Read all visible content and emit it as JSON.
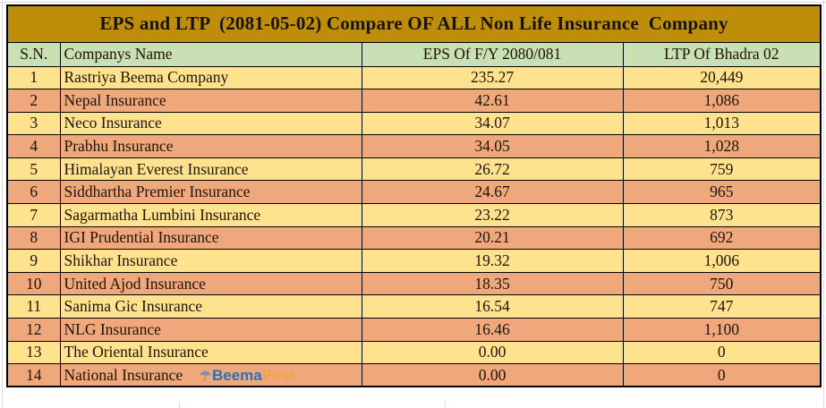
{
  "title": "EPS and LTP  (2081-05-02) Compare OF ALL Non Life Insurance  Company",
  "table": {
    "columns": [
      "S.N.",
      "Companys Name",
      "EPS Of F/Y 2080/081",
      "LTP Of Bhadra 02"
    ],
    "rows": [
      {
        "sn": "1",
        "name": "Rastriya Beema Company",
        "eps": "235.27",
        "ltp": "20,449"
      },
      {
        "sn": "2",
        "name": "Nepal Insurance",
        "eps": "42.61",
        "ltp": "1,086"
      },
      {
        "sn": "3",
        "name": "Neco Insurance",
        "eps": "34.07",
        "ltp": "1,013"
      },
      {
        "sn": "4",
        "name": "Prabhu Insurance",
        "eps": "34.05",
        "ltp": "1,028"
      },
      {
        "sn": "5",
        "name": "Himalayan Everest Insurance",
        "eps": "26.72",
        "ltp": "759"
      },
      {
        "sn": "6",
        "name": "Siddhartha Premier Insurance",
        "eps": "24.67",
        "ltp": "965"
      },
      {
        "sn": "7",
        "name": "Sagarmatha Lumbini Insurance",
        "eps": "23.22",
        "ltp": "873"
      },
      {
        "sn": "8",
        "name": "IGI Prudential Insurance",
        "eps": "20.21",
        "ltp": "692"
      },
      {
        "sn": "9",
        "name": "Shikhar Insurance",
        "eps": "19.32",
        "ltp": "1,006"
      },
      {
        "sn": "10",
        "name": "United Ajod Insurance",
        "eps": "18.35",
        "ltp": "750"
      },
      {
        "sn": "11",
        "name": "Sanima Gic Insurance",
        "eps": "16.54",
        "ltp": "747"
      },
      {
        "sn": "12",
        "name": "NLG Insurance",
        "eps": "16.46",
        "ltp": "1,100"
      },
      {
        "sn": "13",
        "name": "The Oriental Insurance",
        "eps": "0.00",
        "ltp": "0"
      },
      {
        "sn": "14",
        "name": "National Insurance",
        "eps": "0.00",
        "ltp": "0",
        "watermark": true
      }
    ]
  },
  "watermark": {
    "icon": "umbrella-icon",
    "icon_glyph": "☂",
    "beema": "Beema",
    "post": "Post"
  },
  "colors": {
    "title_bg": "#BE8E0B",
    "title_text": "#1a1202",
    "header_bg": "#C9DFB4",
    "row_yellow": "#FFE28E",
    "row_salmon": "#EFA87C",
    "cell_text": "#1f1408",
    "border": "#000000",
    "beema_blue": "#2d6fb3",
    "post_orange": "#f7a23c",
    "umbrella_gray": "#7e93ab",
    "gridline": "#dcdcdc"
  },
  "chart_data": {
    "type": "table",
    "title": "EPS and LTP (2081-05-02) Compare OF ALL Non Life Insurance Company",
    "columns": [
      "S.N.",
      "Companys Name",
      "EPS Of F/Y 2080/081",
      "LTP Of Bhadra 02"
    ],
    "rows": [
      [
        1,
        "Rastriya Beema Company",
        235.27,
        20449
      ],
      [
        2,
        "Nepal Insurance",
        42.61,
        1086
      ],
      [
        3,
        "Neco Insurance",
        34.07,
        1013
      ],
      [
        4,
        "Prabhu Insurance",
        34.05,
        1028
      ],
      [
        5,
        "Himalayan Everest Insurance",
        26.72,
        759
      ],
      [
        6,
        "Siddhartha Premier Insurance",
        24.67,
        965
      ],
      [
        7,
        "Sagarmatha Lumbini Insurance",
        23.22,
        873
      ],
      [
        8,
        "IGI Prudential Insurance",
        20.21,
        692
      ],
      [
        9,
        "Shikhar Insurance",
        19.32,
        1006
      ],
      [
        10,
        "United Ajod Insurance",
        18.35,
        750
      ],
      [
        11,
        "Sanima Gic Insurance",
        16.54,
        747
      ],
      [
        12,
        "NLG Insurance",
        16.46,
        1100
      ],
      [
        13,
        "The Oriental Insurance",
        0.0,
        0
      ],
      [
        14,
        "National Insurance",
        0.0,
        0
      ]
    ]
  }
}
